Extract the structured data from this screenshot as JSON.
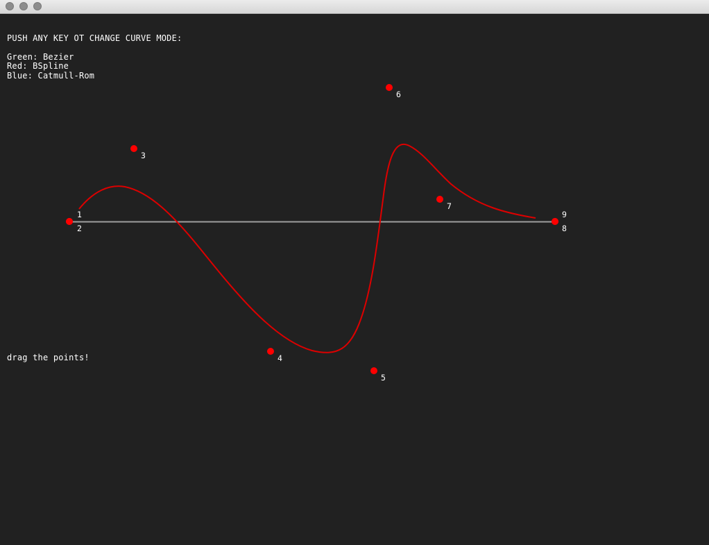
{
  "window": {
    "controls": [
      "close-button",
      "minimize-button",
      "zoom-button"
    ]
  },
  "instructions": {
    "heading": "PUSH ANY KEY OT CHANGE CURVE MODE:",
    "green": "Green: Bezier",
    "red": "Red: BSpline",
    "blue": "Blue: Catmull-Rom"
  },
  "hint": "drag the points!",
  "curve": {
    "mode": "BSpline",
    "curve_color": "#dd0000",
    "point_color": "#ff0000",
    "baseline_color": "#9e9e9e"
  },
  "points": [
    {
      "label": "1"
    },
    {
      "label": "2"
    },
    {
      "label": "3"
    },
    {
      "label": "4"
    },
    {
      "label": "5"
    },
    {
      "label": "6"
    },
    {
      "label": "7"
    },
    {
      "label": "8"
    },
    {
      "label": "9"
    }
  ]
}
